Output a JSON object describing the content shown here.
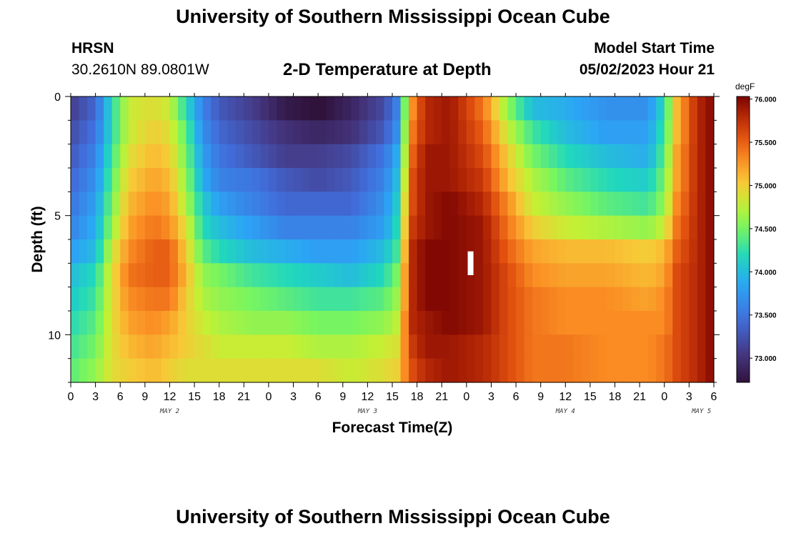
{
  "header": {
    "title": "University of Southern Mississippi Ocean Cube",
    "station": "HRSN",
    "coords": "30.2610N  89.0801W",
    "subtitle": "2-D Temperature at Depth",
    "model_start_label": "Model Start Time",
    "model_start_value": "05/02/2023 Hour 21"
  },
  "footer": {
    "title": "University of Southern Mississippi Ocean Cube"
  },
  "chart_data": {
    "type": "heatmap",
    "title": "2-D Temperature at Depth",
    "xlabel": "Forecast Time(Z)",
    "ylabel": "Depth (ft)",
    "x_tick_labels": [
      "0",
      "3",
      "6",
      "9",
      "12",
      "15",
      "18",
      "21",
      "0",
      "3",
      "6",
      "9",
      "12",
      "15",
      "18",
      "21",
      "0",
      "3",
      "6",
      "9",
      "12",
      "15",
      "18",
      "21",
      "0",
      "3",
      "6"
    ],
    "day_labels": [
      {
        "label": "MAY 2",
        "at_tick": 4
      },
      {
        "label": "MAY 3",
        "at_tick": 12
      },
      {
        "label": "MAY 4",
        "at_tick": 20
      },
      {
        "label": "MAY 5",
        "at_tick": 25.5
      }
    ],
    "xlim_hours": [
      0,
      78
    ],
    "y_ticks": [
      0,
      5,
      10
    ],
    "ylim_ft": [
      0,
      12
    ],
    "colorbar": {
      "unit": "degF",
      "ticks": [
        "73.000",
        "73.500",
        "74.000",
        "74.500",
        "75.000",
        "75.500",
        "76.000"
      ],
      "range": [
        72.72,
        76.03
      ]
    },
    "depth_rows_ft": [
      0.5,
      1.5,
      2.5,
      3.5,
      4.5,
      5.5,
      6.5,
      7.5,
      8.5,
      9.5,
      10.5,
      11.5
    ],
    "keyframe_hours": [
      0,
      3,
      5,
      7,
      10,
      12,
      14,
      16,
      18,
      22,
      26,
      30,
      34,
      38,
      40,
      40.5,
      41.5,
      43,
      46,
      50,
      53,
      56,
      60,
      65,
      70,
      72,
      73.5,
      76,
      78
    ],
    "temperature_degF": [
      [
        73.1,
        73.4,
        74.2,
        74.8,
        74.9,
        74.8,
        74.2,
        73.6,
        73.3,
        73.1,
        72.8,
        72.7,
        72.9,
        73.2,
        73.7,
        74.5,
        75.3,
        75.8,
        75.9,
        75.4,
        74.6,
        74.0,
        73.9,
        73.7,
        73.7,
        74.2,
        75.1,
        75.8,
        76.0
      ],
      [
        73.2,
        73.5,
        74.2,
        74.8,
        75.0,
        74.9,
        74.4,
        73.7,
        73.4,
        73.2,
        73.0,
        72.9,
        73.0,
        73.3,
        73.8,
        74.6,
        75.4,
        75.8,
        75.9,
        75.5,
        74.8,
        74.3,
        74.0,
        73.8,
        73.8,
        74.3,
        75.1,
        75.8,
        76.0
      ],
      [
        73.3,
        73.6,
        74.3,
        74.9,
        75.1,
        75.0,
        74.5,
        73.8,
        73.5,
        73.3,
        73.1,
        73.1,
        73.2,
        73.5,
        74.0,
        74.7,
        75.5,
        75.9,
        75.9,
        75.6,
        75.0,
        74.5,
        74.2,
        74.0,
        73.9,
        74.4,
        75.2,
        75.8,
        76.0
      ],
      [
        73.4,
        73.7,
        74.4,
        75.0,
        75.2,
        75.1,
        74.6,
        73.9,
        73.6,
        73.5,
        73.3,
        73.2,
        73.3,
        73.6,
        74.1,
        74.8,
        75.6,
        75.9,
        75.9,
        75.7,
        75.1,
        74.7,
        74.4,
        74.2,
        74.1,
        74.5,
        75.2,
        75.8,
        76.0
      ],
      [
        73.5,
        73.8,
        74.5,
        75.1,
        75.3,
        75.2,
        74.7,
        74.1,
        73.8,
        73.6,
        73.4,
        73.4,
        73.4,
        73.7,
        74.2,
        74.9,
        75.6,
        75.9,
        76.0,
        75.8,
        75.3,
        74.8,
        74.6,
        74.4,
        74.3,
        74.6,
        75.3,
        75.8,
        76.0
      ],
      [
        73.6,
        73.9,
        74.6,
        75.2,
        75.4,
        75.3,
        74.9,
        74.2,
        74.0,
        73.8,
        73.6,
        73.6,
        73.6,
        73.8,
        74.3,
        75.0,
        75.7,
        75.9,
        76.0,
        75.9,
        75.4,
        75.0,
        74.8,
        74.7,
        74.6,
        74.8,
        75.4,
        75.8,
        76.0
      ],
      [
        73.8,
        74.0,
        74.8,
        75.3,
        75.5,
        75.5,
        75.0,
        74.4,
        74.2,
        74.0,
        73.9,
        73.8,
        73.8,
        74.0,
        74.4,
        75.1,
        75.8,
        76.0,
        76.0,
        75.9,
        75.5,
        75.2,
        75.1,
        75.1,
        75.0,
        75.1,
        75.5,
        75.8,
        76.0
      ],
      [
        74.0,
        74.2,
        74.9,
        75.4,
        75.5,
        75.5,
        75.1,
        74.6,
        74.5,
        74.3,
        74.2,
        74.1,
        74.0,
        74.2,
        74.6,
        75.2,
        75.8,
        76.0,
        76.0,
        75.9,
        75.6,
        75.3,
        75.2,
        75.2,
        75.1,
        75.2,
        75.6,
        75.8,
        76.0
      ],
      [
        74.1,
        74.3,
        74.9,
        75.3,
        75.4,
        75.4,
        75.0,
        74.7,
        74.6,
        74.5,
        74.4,
        74.3,
        74.3,
        74.4,
        74.7,
        75.2,
        75.8,
        76.0,
        76.0,
        75.9,
        75.6,
        75.4,
        75.3,
        75.3,
        75.2,
        75.3,
        75.6,
        75.8,
        76.0
      ],
      [
        74.2,
        74.4,
        74.9,
        75.2,
        75.3,
        75.2,
        75.0,
        74.8,
        74.7,
        74.6,
        74.6,
        74.5,
        74.5,
        74.6,
        74.8,
        75.3,
        75.8,
        75.9,
        76.0,
        75.9,
        75.6,
        75.4,
        75.3,
        75.3,
        75.3,
        75.3,
        75.6,
        75.8,
        76.0
      ],
      [
        74.3,
        74.5,
        74.9,
        75.1,
        75.2,
        75.1,
        75.0,
        74.9,
        74.8,
        74.8,
        74.8,
        74.7,
        74.7,
        74.8,
        74.9,
        75.3,
        75.7,
        75.9,
        75.9,
        75.8,
        75.6,
        75.4,
        75.4,
        75.3,
        75.3,
        75.4,
        75.6,
        75.8,
        76.0
      ],
      [
        74.4,
        74.6,
        74.9,
        75.0,
        75.1,
        75.0,
        74.9,
        74.9,
        74.9,
        74.9,
        74.9,
        74.9,
        74.8,
        74.9,
        75.0,
        75.3,
        75.6,
        75.8,
        75.9,
        75.8,
        75.6,
        75.4,
        75.4,
        75.3,
        75.3,
        75.4,
        75.6,
        75.8,
        76.0
      ]
    ],
    "marker": {
      "label": "current time",
      "hour": 48.5,
      "depth_ft": [
        6.5,
        7.5
      ]
    }
  }
}
